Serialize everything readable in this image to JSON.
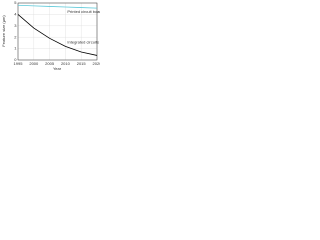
{
  "chart_data": {
    "type": "line",
    "x_label": "Year",
    "y_label": "Feature size (µm)",
    "x": [
      1995,
      2000,
      2005,
      2010,
      2015,
      2020
    ],
    "series": [
      {
        "name": "Printed circuit boards",
        "color": "#5bc8d8",
        "values": [
          4.8,
          4.75,
          4.7,
          4.65,
          4.6,
          4.55
        ]
      },
      {
        "name": "Integrated circuits",
        "color": "#000000",
        "values": [
          4.0,
          2.8,
          1.9,
          1.2,
          0.7,
          0.4
        ]
      }
    ],
    "xlim": [
      1995,
      2020
    ],
    "xticks": [
      1995,
      2000,
      2005,
      2010,
      2015,
      2020
    ],
    "ylim": [
      0,
      5
    ],
    "yticks": [
      0,
      1,
      2,
      3,
      4,
      5
    ],
    "grid": true
  }
}
